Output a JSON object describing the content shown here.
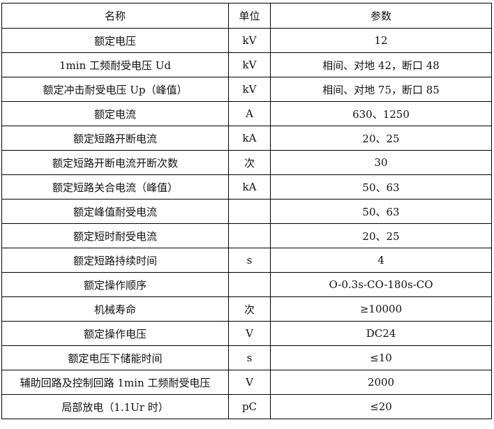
{
  "table": {
    "header": [
      "名称",
      "单位",
      "参数"
    ],
    "rows": [
      [
        "额定电压",
        "kV",
        "12"
      ],
      [
        "1min 工频耐受电压 Ud",
        "kV",
        "相间、对地 42，断口 48"
      ],
      [
        "额定冲击耐受电压 Up（峰值）",
        "kV",
        "相间、对地 75，断口 85"
      ],
      [
        "额定电流",
        "A",
        "630、1250"
      ],
      [
        "额定短路开断电流",
        "kA",
        "20、25"
      ],
      [
        "额定短路开断电流开断次数",
        "次",
        "30"
      ],
      [
        "额定短路关合电流（峰值）",
        "kA",
        "50、63"
      ],
      [
        "额定峰值耐受电流",
        null,
        "50、63"
      ],
      [
        "额定短时耐受电流",
        null,
        "20、25"
      ],
      [
        "额定短路持续时间",
        "s",
        "4"
      ],
      [
        "额定操作顺序",
        null,
        "O-0.3s-CO-180s-CO"
      ],
      [
        "机械寿命",
        "次",
        "≥10000"
      ],
      [
        "额定操作电压",
        "V",
        "DC24"
      ],
      [
        "额定电压下储能时间",
        "s",
        "≤10"
      ],
      [
        "辅助回路及控制回路 1min 工频耐受电压",
        "V",
        "2000"
      ],
      [
        "局部放电（1.1Ur 时）",
        "pC",
        "≤20"
      ]
    ]
  }
}
